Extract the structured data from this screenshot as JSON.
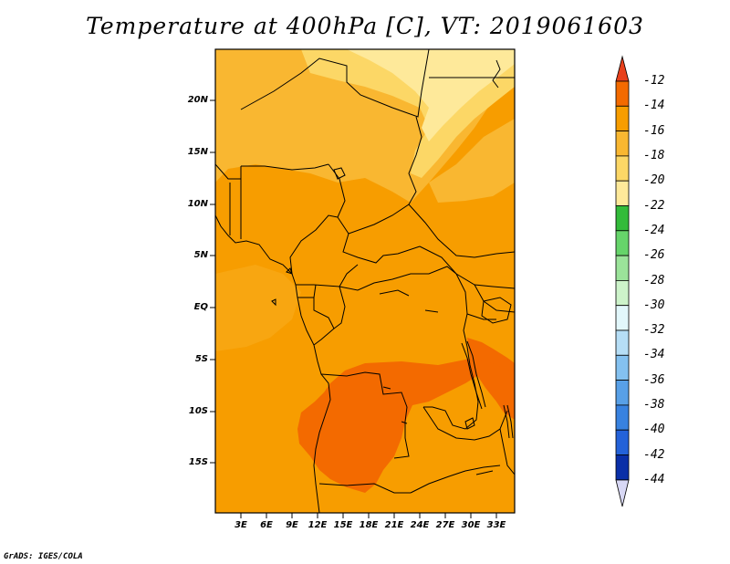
{
  "title": "Temperature at 400hPa [C], VT: 2019061603",
  "credit": "GrADS: IGES/COLA",
  "lat_labels": [
    "20N",
    "15N",
    "10N",
    "5N",
    "EQ",
    "5S",
    "10S",
    "15S"
  ],
  "lon_labels": [
    "3E",
    "6E",
    "9E",
    "12E",
    "15E",
    "18E",
    "21E",
    "24E",
    "27E",
    "30E",
    "33E"
  ],
  "colorbar": {
    "labels": [
      "-12",
      "-14",
      "-16",
      "-18",
      "-20",
      "-22",
      "-24",
      "-26",
      "-28",
      "-30",
      "-32",
      "-34",
      "-36",
      "-38",
      "-40",
      "-42",
      "-44"
    ],
    "colors": [
      "#e8401b",
      "#f36a00",
      "#f79d00",
      "#f9b731",
      "#fcd766",
      "#fee99a",
      "#fffac4",
      "#33bb3a",
      "#66d46a",
      "#9be39a",
      "#cdf3ca",
      "#e2f7fb",
      "#b6def6",
      "#84c1f0",
      "#58a0e7",
      "#3882e0",
      "#2462d9",
      "#1449c4",
      "#0a2fa8",
      "#0a1670",
      "#d8d8f5"
    ]
  },
  "map_colors": {
    "base": "#f79d00",
    "warm": "#f36a00",
    "cool1": "#f9b731",
    "cool2": "#fcd766",
    "cool3": "#fee99a"
  }
}
